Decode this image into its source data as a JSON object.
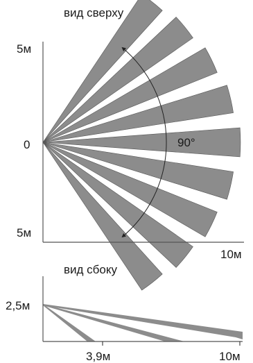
{
  "top_view": {
    "title": "вид сверху",
    "y_top_label": "5м",
    "y_mid_label": "0",
    "y_bottom_label": "5м",
    "x_end_label": "10м",
    "angle_label": "90°",
    "zone_count": 9
  },
  "side_view": {
    "title": "вид сбоку",
    "height_label": "2,5м",
    "x_mid_label": "3,9м",
    "x_end_label": "10м",
    "beam_count": 3
  }
}
